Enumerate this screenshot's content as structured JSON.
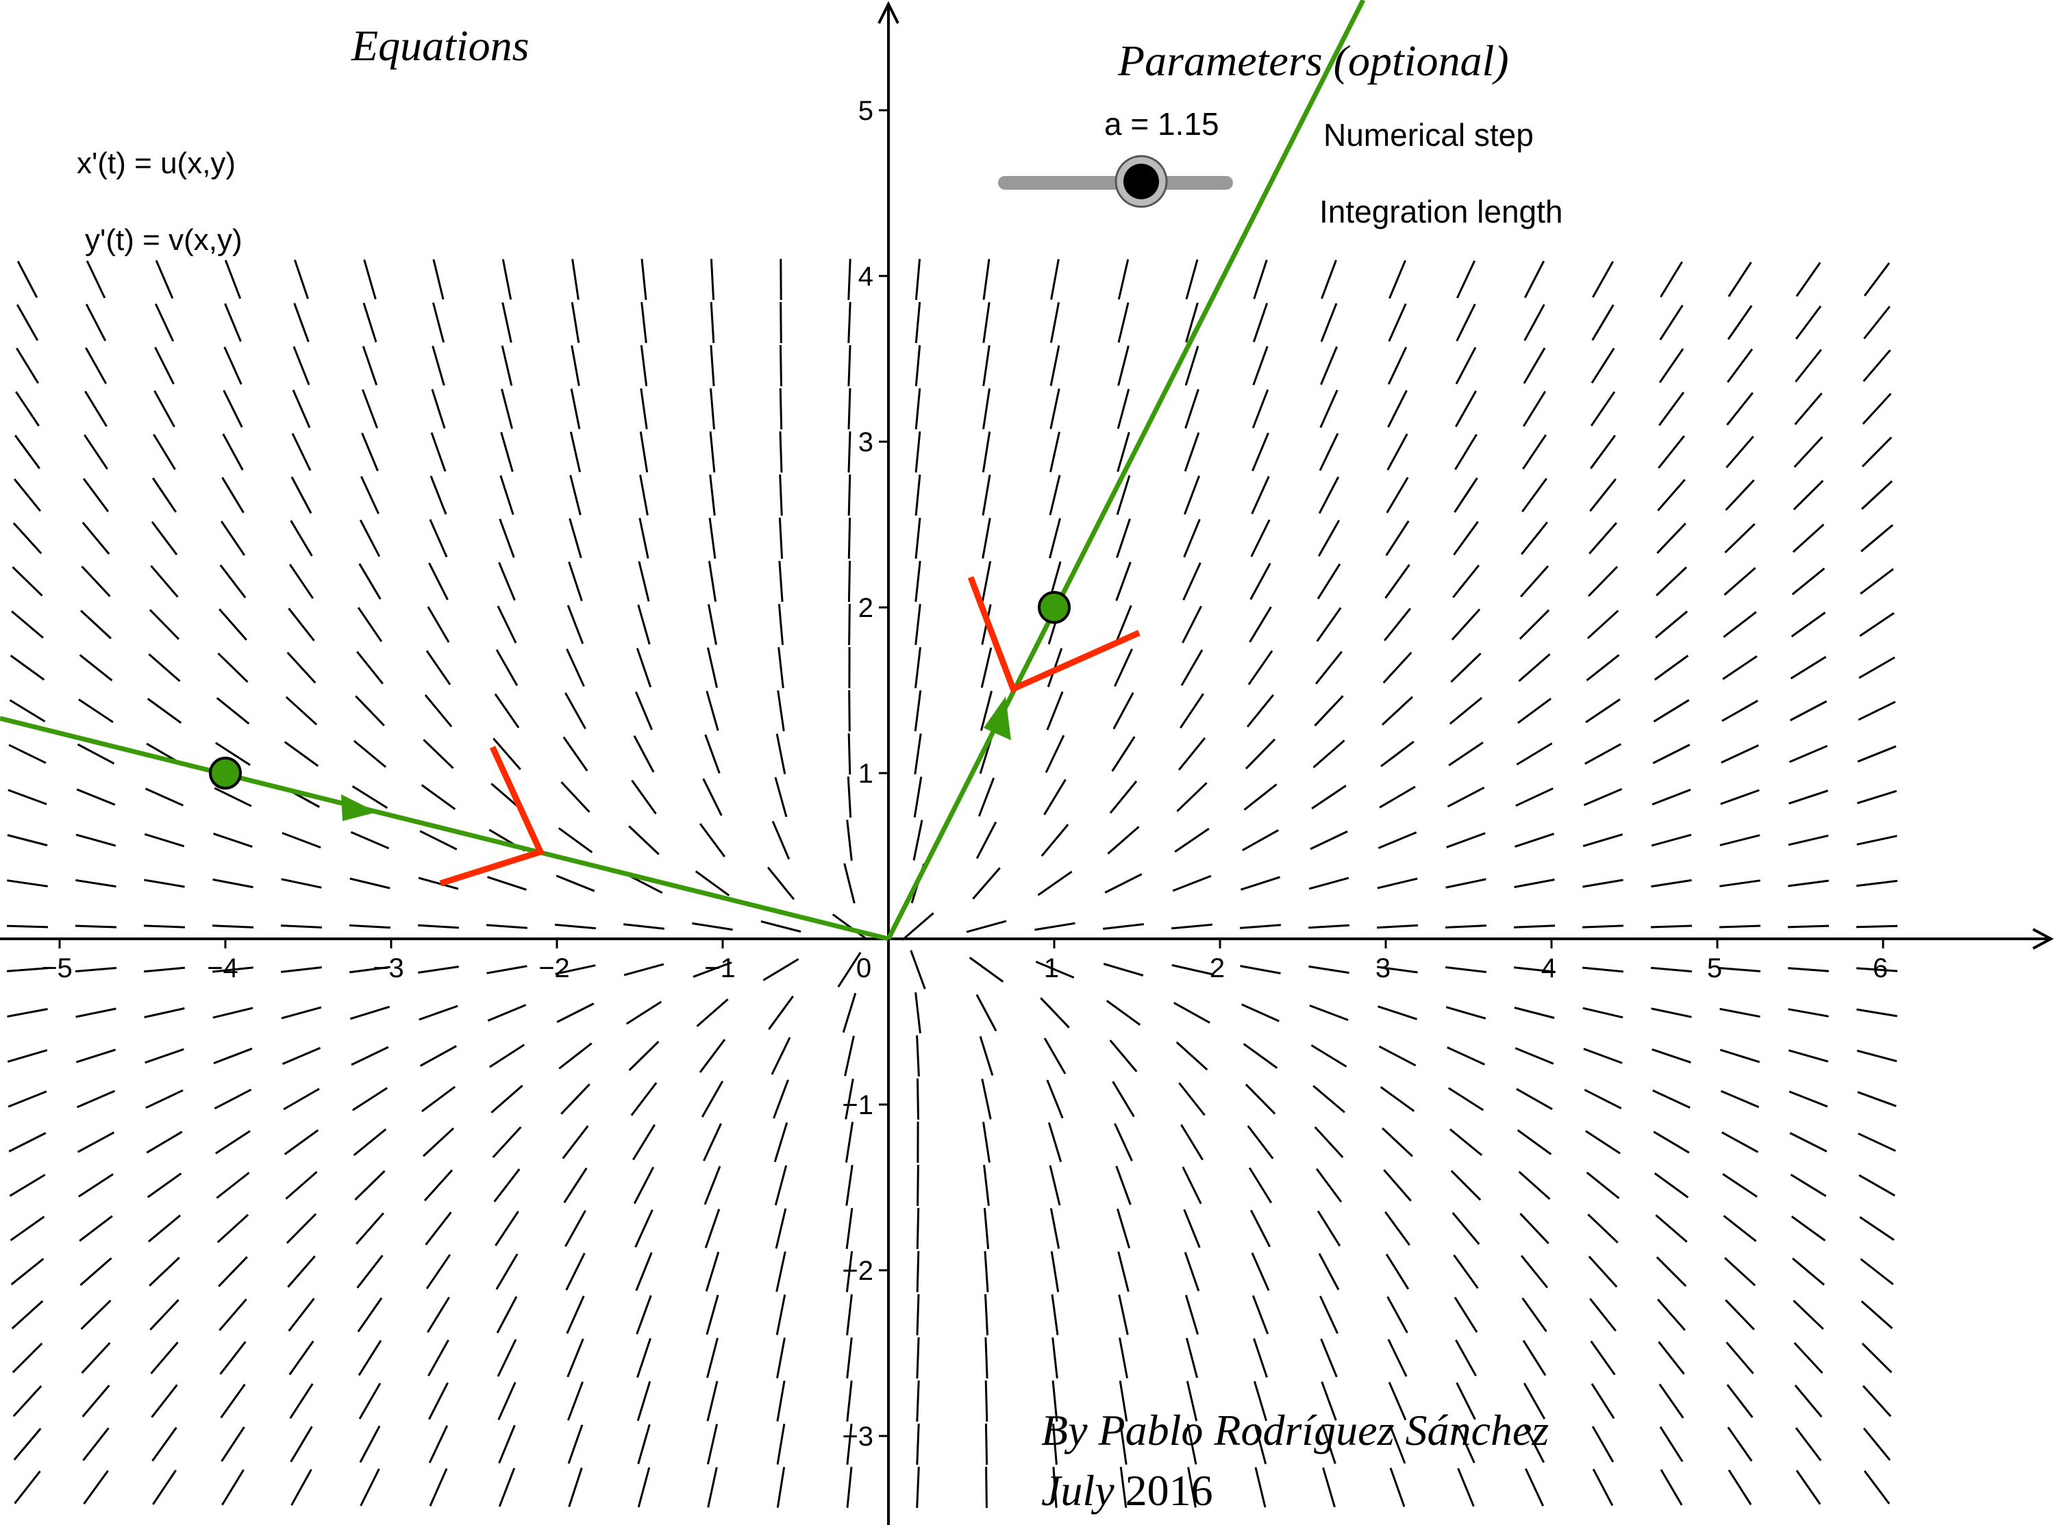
{
  "headings": {
    "equations": "Equations",
    "parameters": "Parameters (optional)"
  },
  "equations": {
    "x_eq": "x'(t) = u(x,y)",
    "y_eq": "y'(t) = v(x,y)"
  },
  "parameters": {
    "slider_label": "a = 1.15",
    "slider_value": 1.15,
    "numerical_step": "Numerical step",
    "integration_length": "Integration length"
  },
  "credits": {
    "author_prefix": "By Pablo Rodríguez Sánchez",
    "date_month": "July",
    "date_year": "2016"
  },
  "colors": {
    "trajectory": "#3a9a0a",
    "eigen": "#ff2a00",
    "point_fill": "#3a9a0a",
    "axis": "#000000",
    "slider_track": "#999999"
  },
  "graph": {
    "x_ticks": [
      "−5",
      "−4",
      "−3",
      "−2",
      "−1",
      "0",
      "1",
      "2",
      "3",
      "4",
      "5",
      "6"
    ],
    "y_ticks": [
      "5",
      "4",
      "3",
      "2",
      "1",
      "−1",
      "−2",
      "−3"
    ],
    "points": [
      {
        "label": "initial-point-1",
        "x": -4,
        "y": 1
      },
      {
        "label": "initial-point-2",
        "x": 1,
        "y": 2
      }
    ]
  }
}
